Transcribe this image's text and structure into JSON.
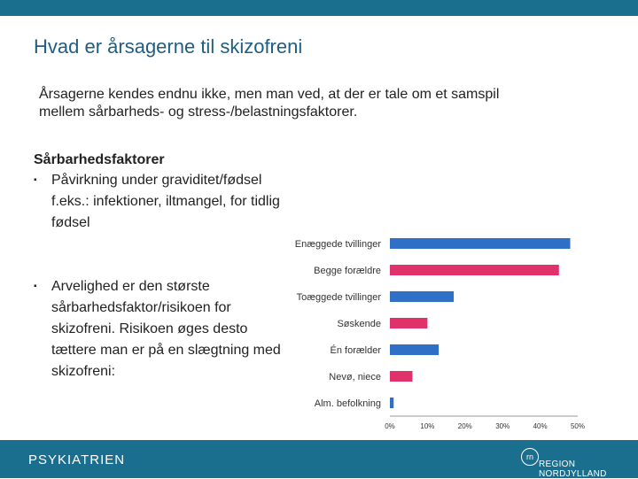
{
  "slide": {
    "title": "Hvad er årsagerne til skizofreni",
    "intro": "Årsagerne kendes endnu ikke, men man ved, at der er tale om et samspil mellem sårbarheds- og stress-/belastningsfaktorer.",
    "section_heading": "Sårbarhedsfaktorer",
    "bullets": [
      "Påvirkning under graviditet/fødsel f.eks.: infektioner, iltmangel, for tidlig  fødsel",
      "Arvelighed er den største sårbarhedsfaktor/risikoen for skizofreni. Risikoen øges desto tættere man er på en slægtning med skizofreni:"
    ],
    "bullet_symbol": "▪"
  },
  "footer": {
    "left": "PSYKIATRIEN",
    "logo_text": "rn",
    "right": "REGION NORDJYLLAND"
  },
  "colors": {
    "brand": "#1a6e8e",
    "title": "#1f5d82",
    "blue_bar": "#2f6fc8",
    "pink_bar": "#e0316b"
  },
  "chart_data": {
    "type": "bar",
    "orientation": "horizontal",
    "categories": [
      "Enæggede tvillinger",
      "Begge forældre",
      "Toæggede tvillinger",
      "Søskende",
      "Én forælder",
      "Nevø, niece",
      "Alm. befolkning"
    ],
    "values": [
      48,
      45,
      17,
      10,
      13,
      6,
      1
    ],
    "bar_colors": [
      "#2f6fc8",
      "#e0316b",
      "#2f6fc8",
      "#e0316b",
      "#2f6fc8",
      "#e0316b",
      "#2f6fc8"
    ],
    "xticks": [
      "0%",
      "10%",
      "20%",
      "30%",
      "40%",
      "50%"
    ],
    "xlim": [
      0,
      50
    ],
    "grid": false
  }
}
